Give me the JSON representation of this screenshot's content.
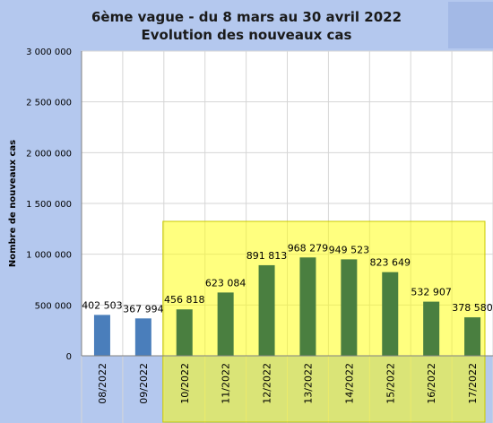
{
  "chart_data": {
    "type": "bar",
    "title": "6ème vague - du 8 mars au 30 avril 2022",
    "subtitle": "Evolution des nouveaux cas",
    "xlabel": "",
    "ylabel": "Nombre de nouveaux cas",
    "ylim": [
      0,
      3000000
    ],
    "yticks": [
      "0",
      "500 000",
      "1 000 000",
      "1 500 000",
      "2 000 000",
      "2 500 000",
      "3 000 000"
    ],
    "categories": [
      "08/2022",
      "09/2022",
      "10/2022",
      "11/2022",
      "12/2022",
      "13/2022",
      "14/2022",
      "15/2022",
      "16/2022",
      "17/2022"
    ],
    "values": [
      402503,
      367994,
      456818,
      623084,
      891813,
      968279,
      949523,
      823649,
      532907,
      378580
    ],
    "value_labels": [
      "402 503",
      "367 994",
      "456 818",
      "623 084",
      "891 813",
      "968 279",
      "949 523",
      "823 649",
      "532 907",
      "378 580"
    ],
    "bar_colors": [
      "#4a7ebb",
      "#4a7ebb",
      "#4a7f40",
      "#4a7f40",
      "#4a7f40",
      "#4a7f40",
      "#4a7f40",
      "#4a7f40",
      "#4a7f40",
      "#4a7f40"
    ],
    "highlight": {
      "from_category": "10/2022",
      "to_category": "17/2022",
      "color": "#ffff00",
      "opacity": 0.5
    },
    "grid": true,
    "legend": "none"
  },
  "colors": {
    "background": "#b4c8ee",
    "plot_background": "#ffffff",
    "gridline": "#d6d6d6"
  }
}
